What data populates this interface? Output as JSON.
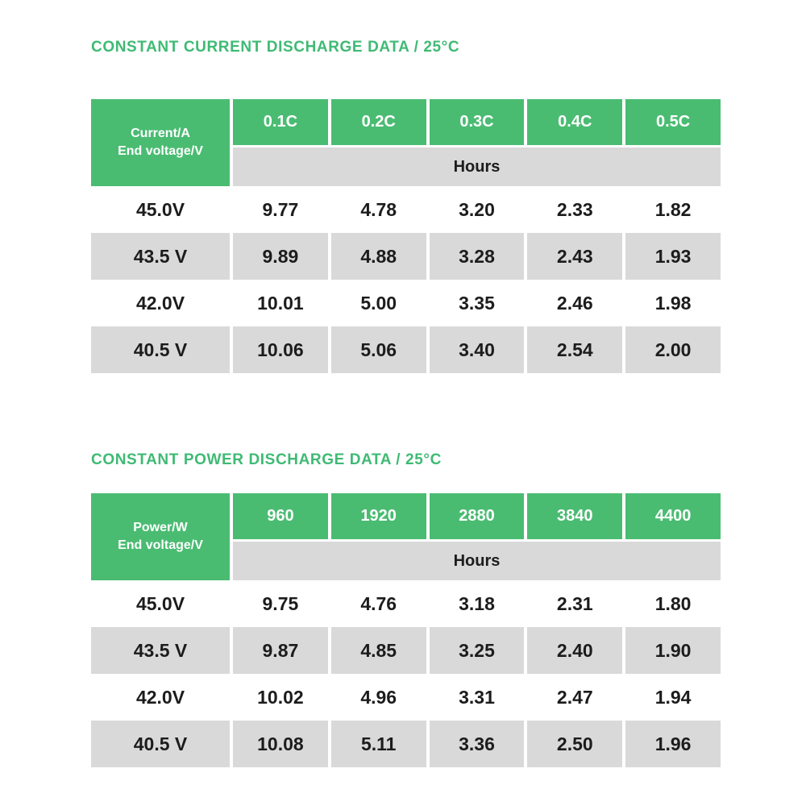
{
  "colors": {
    "green_cell": "#4abc72",
    "title_green": "#3fba74",
    "row_gray": "#d9d9d9",
    "text_dark": "#1c1c1c",
    "header_text": "#ffffff",
    "page_background": "#ffffff"
  },
  "tables": [
    {
      "title": "CONSTANT CURRENT DISCHARGE DATA / 25°C",
      "corner": {
        "line1": "Current/A",
        "line2": "End voltage/V"
      },
      "columns": [
        "0.1C",
        "0.2C",
        "0.3C",
        "0.4C",
        "0.5C"
      ],
      "unit_label": "Hours",
      "rows": [
        {
          "label": "45.0V",
          "values": [
            "9.77",
            "4.78",
            "3.20",
            "2.33",
            "1.82"
          ]
        },
        {
          "label": "43.5 V",
          "values": [
            "9.89",
            "4.88",
            "3.28",
            "2.43",
            "1.93"
          ]
        },
        {
          "label": "42.0V",
          "values": [
            "10.01",
            "5.00",
            "3.35",
            "2.46",
            "1.98"
          ]
        },
        {
          "label": "40.5 V",
          "values": [
            "10.06",
            "5.06",
            "3.40",
            "2.54",
            "2.00"
          ]
        }
      ]
    },
    {
      "title": "CONSTANT POWER DISCHARGE DATA / 25°C",
      "corner": {
        "line1": "Power/W",
        "line2": "End voltage/V"
      },
      "columns": [
        "960",
        "1920",
        "2880",
        "3840",
        "4400"
      ],
      "unit_label": "Hours",
      "rows": [
        {
          "label": "45.0V",
          "values": [
            "9.75",
            "4.76",
            "3.18",
            "2.31",
            "1.80"
          ]
        },
        {
          "label": "43.5 V",
          "values": [
            "9.87",
            "4.85",
            "3.25",
            "2.40",
            "1.90"
          ]
        },
        {
          "label": "42.0V",
          "values": [
            "10.02",
            "4.96",
            "3.31",
            "2.47",
            "1.94"
          ]
        },
        {
          "label": "40.5 V",
          "values": [
            "10.08",
            "5.11",
            "3.36",
            "2.50",
            "1.96"
          ]
        }
      ]
    }
  ]
}
